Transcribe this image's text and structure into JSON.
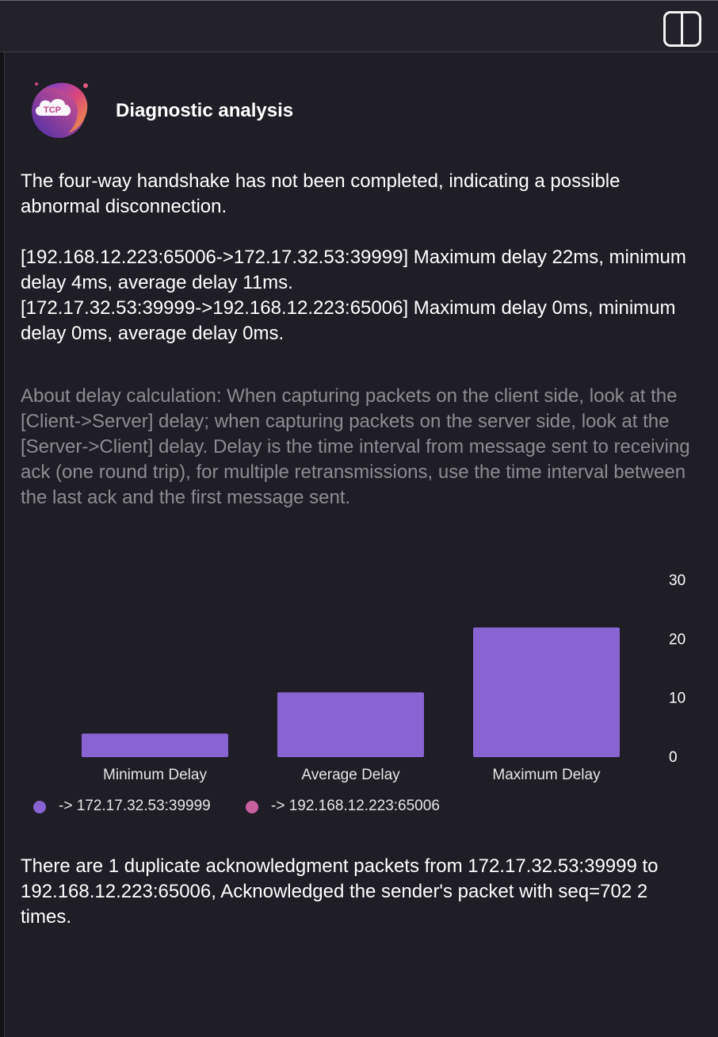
{
  "header": {
    "title": "Diagnostic analysis",
    "logo_text": "TCP"
  },
  "paragraphs": {
    "handshake": "The four-way handshake has not been completed, indicating a possible abnormal disconnection.",
    "delay_line1": "[192.168.12.223:65006->172.17.32.53:39999] Maximum delay 22ms, minimum delay 4ms, average delay 11ms.",
    "delay_line2": "[172.17.32.53:39999->192.168.12.223:65006] Maximum delay 0ms, minimum delay 0ms, average delay 0ms.",
    "about": "About delay calculation: When capturing packets on the client side, look at the [Client->Server] delay; when capturing packets on the server side, look at the [Server->Client] delay. Delay is the time interval from message sent to receiving ack (one round trip), for multiple retransmissions, use the time interval between the last ack and the first message sent.",
    "duplicate": "There are 1 duplicate acknowledgment packets from 172.17.32.53:39999 to 192.168.12.223:65006, Acknowledged the sender's packet with seq=702 2 times."
  },
  "colors": {
    "background": "#1f1d25",
    "series1": "#8764d2",
    "series2": "#c8629e",
    "muted_text": "#8e8b93"
  },
  "chart_data": {
    "type": "bar",
    "categories": [
      "Minimum Delay",
      "Average Delay",
      "Maximum Delay"
    ],
    "series": [
      {
        "name": "-> 172.17.32.53:39999",
        "values": [
          4,
          11,
          22
        ],
        "color": "#8764d2"
      },
      {
        "name": "-> 192.168.12.223:65006",
        "values": [
          0,
          0,
          0
        ],
        "color": "#c8629e"
      }
    ],
    "yticks": [
      "0",
      "10",
      "20",
      "30"
    ],
    "ylim": [
      0,
      30
    ],
    "y_axis_side": "right",
    "legend_position": "bottom-left",
    "grid": false
  }
}
